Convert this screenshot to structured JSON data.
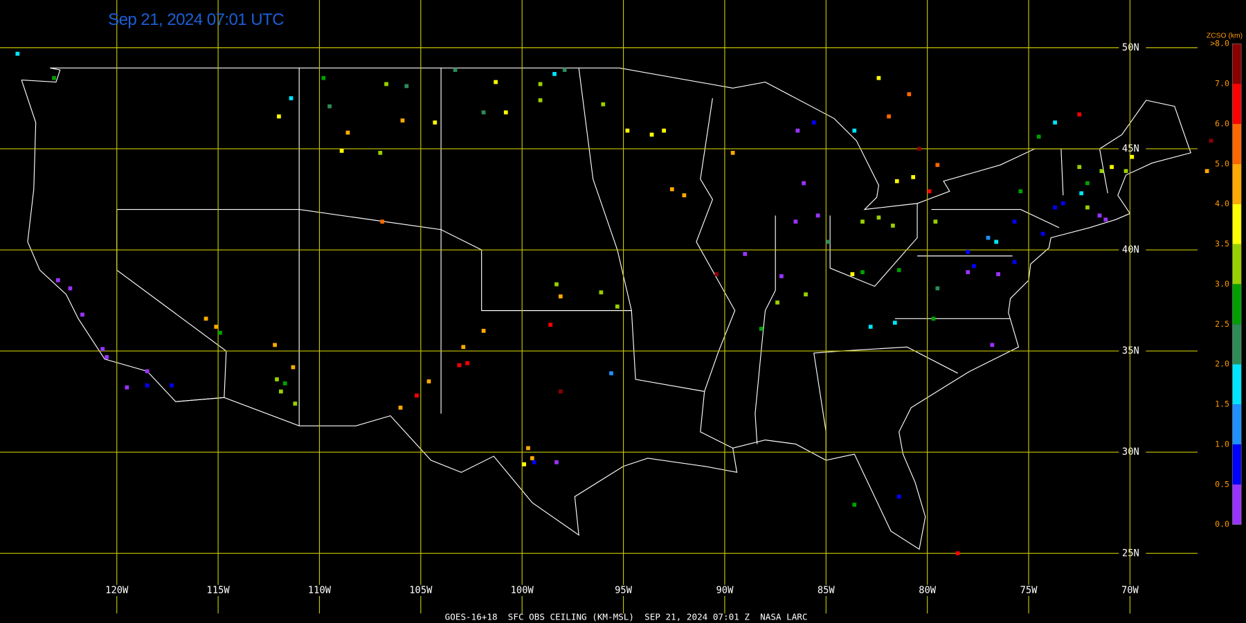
{
  "map": {
    "title": "Sep 21, 2024 07:01 UTC",
    "footer": "GOES-16+18  SFC OBS CEILING (KM-MSL)  SEP 21, 2024 07:01 Z  NASA LARC",
    "latitudes": [
      {
        "value": 50,
        "label": "50N"
      },
      {
        "value": 45,
        "label": "45N"
      },
      {
        "value": 40,
        "label": "40N"
      },
      {
        "value": 35,
        "label": "35N"
      },
      {
        "value": 30,
        "label": "30N"
      },
      {
        "value": 25,
        "label": "25N"
      }
    ],
    "longitudes": [
      {
        "value": -120,
        "label": "120W"
      },
      {
        "value": -115,
        "label": "115W"
      },
      {
        "value": -110,
        "label": "110W"
      },
      {
        "value": -105,
        "label": "105W"
      },
      {
        "value": -100,
        "label": "100W"
      },
      {
        "value": -95,
        "label": "95W"
      },
      {
        "value": -90,
        "label": "90W"
      },
      {
        "value": -85,
        "label": "85W"
      },
      {
        "value": -80,
        "label": "80W"
      },
      {
        "value": -75,
        "label": "75W"
      },
      {
        "value": -70,
        "label": "70W"
      }
    ],
    "colorbar": {
      "title": "ZCSO (km)",
      "bins": [
        0,
        0.5,
        1,
        1.5,
        2,
        2.5,
        3,
        3.5,
        4,
        5,
        6,
        7,
        8
      ],
      "colors": [
        "#9933ff",
        "#0000ff",
        "#1e90ff",
        "#00e5ff",
        "#2e8b57",
        "#00a000",
        "#99d000",
        "#ffff00",
        "#ffaa00",
        "#ff6600",
        "#ff0000",
        "#8b0000"
      ],
      "ticks": [
        {
          "value": 0,
          "label": "0.0"
        },
        {
          "value": 0.5,
          "label": "0.5"
        },
        {
          "value": 1,
          "label": "1.0"
        },
        {
          "value": 1.5,
          "label": "1.5"
        },
        {
          "value": 2,
          "label": "2.0"
        },
        {
          "value": 2.5,
          "label": "2.5"
        },
        {
          "value": 3,
          "label": "3.0"
        },
        {
          "value": 3.5,
          "label": "3.5"
        },
        {
          "value": 4,
          "label": "4.0"
        },
        {
          "value": 5,
          "label": "5.0"
        },
        {
          "value": 6,
          "label": "6.0"
        },
        {
          "value": 7,
          "label": "7.0"
        },
        {
          "value": 8,
          "label": ">8.0"
        }
      ]
    },
    "stations": [
      [
        -124.9,
        49.7,
        1.8
      ],
      [
        -123.1,
        48.5,
        2.7
      ],
      [
        -122.9,
        38.5,
        0.3
      ],
      [
        -122.3,
        38.1,
        0.3
      ],
      [
        -121.7,
        36.8,
        0.3
      ],
      [
        -120.7,
        35.1,
        0.3
      ],
      [
        -120.5,
        34.7,
        0.3
      ],
      [
        -119.5,
        33.2,
        0.3
      ],
      [
        -118.5,
        34.0,
        0.3
      ],
      [
        -118.5,
        33.3,
        0.7
      ],
      [
        -117.3,
        33.3,
        0.7
      ],
      [
        -115.6,
        36.6,
        4.5
      ],
      [
        -115.1,
        36.2,
        4.5
      ],
      [
        -114.9,
        35.9,
        2.7
      ],
      [
        -112.2,
        35.3,
        4.5
      ],
      [
        -111.3,
        34.2,
        4.5
      ],
      [
        -112.1,
        33.6,
        3.2
      ],
      [
        -111.7,
        33.4,
        2.7
      ],
      [
        -111.9,
        33.0,
        3.2
      ],
      [
        -111.2,
        32.4,
        3.2
      ],
      [
        -111.4,
        47.5,
        1.8
      ],
      [
        -112.0,
        46.6,
        3.8
      ],
      [
        -109.8,
        48.5,
        2.7
      ],
      [
        -109.5,
        47.1,
        2.2
      ],
      [
        -108.6,
        45.8,
        4.5
      ],
      [
        -108.9,
        44.9,
        3.8
      ],
      [
        -107.0,
        44.8,
        3.2
      ],
      [
        -106.7,
        48.2,
        3.2
      ],
      [
        -105.7,
        48.1,
        2.2
      ],
      [
        -105.9,
        46.4,
        4.5
      ],
      [
        -104.3,
        46.3,
        3.8
      ],
      [
        -106.9,
        41.4,
        5.5
      ],
      [
        -103.3,
        48.9,
        2.2
      ],
      [
        -101.3,
        48.3,
        3.8
      ],
      [
        -101.9,
        46.8,
        2.2
      ],
      [
        -100.8,
        46.8,
        3.8
      ],
      [
        -99.1,
        48.2,
        3.2
      ],
      [
        -98.4,
        48.7,
        1.8
      ],
      [
        -97.9,
        48.9,
        2.2
      ],
      [
        -99.1,
        47.4,
        3.2
      ],
      [
        -96.0,
        47.2,
        3.2
      ],
      [
        -94.8,
        45.9,
        3.8
      ],
      [
        -93.6,
        45.7,
        3.8
      ],
      [
        -93.0,
        45.9,
        3.8
      ],
      [
        -92.6,
        43.0,
        4.5
      ],
      [
        -92.0,
        42.7,
        4.5
      ],
      [
        -89.6,
        44.8,
        4.5
      ],
      [
        -98.3,
        38.3,
        3.2
      ],
      [
        -98.1,
        37.7,
        4.5
      ],
      [
        -98.6,
        36.3,
        6.5
      ],
      [
        -96.1,
        37.9,
        3.2
      ],
      [
        -95.3,
        37.2,
        3.2
      ],
      [
        -101.9,
        36.0,
        4.5
      ],
      [
        -102.9,
        35.2,
        4.5
      ],
      [
        -103.1,
        34.3,
        6.5
      ],
      [
        -102.7,
        34.4,
        6.5
      ],
      [
        -104.6,
        33.5,
        4.5
      ],
      [
        -105.2,
        32.8,
        6.5
      ],
      [
        -106.0,
        32.2,
        4.5
      ],
      [
        -98.1,
        33.0,
        7.5
      ],
      [
        -95.6,
        33.9,
        1.2
      ],
      [
        -99.7,
        30.2,
        4.5
      ],
      [
        -99.5,
        29.7,
        4.5
      ],
      [
        -99.9,
        29.4,
        3.8
      ],
      [
        -98.3,
        29.5,
        0.3
      ],
      [
        -99.4,
        29.5,
        0.7
      ],
      [
        -90.4,
        38.8,
        7.5
      ],
      [
        -89.0,
        39.8,
        0.3
      ],
      [
        -87.2,
        38.7,
        0.3
      ],
      [
        -86.5,
        41.4,
        0.3
      ],
      [
        -85.4,
        41.7,
        0.3
      ],
      [
        -86.1,
        43.3,
        0.3
      ],
      [
        -85.6,
        46.3,
        0.7
      ],
      [
        -86.4,
        45.9,
        0.3
      ],
      [
        -87.4,
        37.4,
        3.2
      ],
      [
        -86.0,
        37.8,
        3.2
      ],
      [
        -88.2,
        36.1,
        2.7
      ],
      [
        -83.7,
        38.8,
        3.8
      ],
      [
        -83.2,
        41.4,
        3.2
      ],
      [
        -82.4,
        41.6,
        3.2
      ],
      [
        -81.7,
        41.2,
        3.2
      ],
      [
        -83.2,
        38.9,
        2.7
      ],
      [
        -84.9,
        40.4,
        2.2
      ],
      [
        -83.6,
        45.9,
        1.8
      ],
      [
        -82.4,
        48.5,
        3.8
      ],
      [
        -80.9,
        47.7,
        5.5
      ],
      [
        -81.9,
        46.6,
        5.5
      ],
      [
        -80.4,
        45.0,
        7.5
      ],
      [
        -80.7,
        43.6,
        3.8
      ],
      [
        -81.5,
        43.4,
        3.8
      ],
      [
        -79.9,
        42.9,
        6.5
      ],
      [
        -79.5,
        44.2,
        5.5
      ],
      [
        -79.6,
        41.4,
        3.2
      ],
      [
        -81.4,
        39.0,
        2.7
      ],
      [
        -79.5,
        38.1,
        2.2
      ],
      [
        -81.6,
        36.4,
        1.8
      ],
      [
        -82.8,
        36.2,
        1.8
      ],
      [
        -79.7,
        36.6,
        2.7
      ],
      [
        -78.0,
        38.9,
        0.3
      ],
      [
        -77.7,
        39.2,
        0.7
      ],
      [
        -76.6,
        40.4,
        1.8
      ],
      [
        -77.0,
        40.6,
        1.2
      ],
      [
        -78.0,
        39.9,
        0.7
      ],
      [
        -76.5,
        38.8,
        0.3
      ],
      [
        -75.7,
        39.4,
        0.7
      ],
      [
        -75.4,
        42.9,
        2.7
      ],
      [
        -76.8,
        35.3,
        0.3
      ],
      [
        -75.7,
        41.4,
        0.7
      ],
      [
        -74.3,
        40.8,
        0.7
      ],
      [
        -73.7,
        42.1,
        0.7
      ],
      [
        -73.3,
        42.3,
        0.7
      ],
      [
        -72.4,
        42.8,
        1.8
      ],
      [
        -72.1,
        42.1,
        3.2
      ],
      [
        -71.5,
        41.7,
        0.3
      ],
      [
        -71.2,
        41.5,
        0.3
      ],
      [
        -72.1,
        43.3,
        2.7
      ],
      [
        -72.5,
        44.1,
        3.2
      ],
      [
        -71.4,
        43.9,
        3.2
      ],
      [
        -70.9,
        44.1,
        3.8
      ],
      [
        -70.2,
        43.9,
        3.2
      ],
      [
        -69.9,
        44.6,
        3.8
      ],
      [
        -74.5,
        45.6,
        2.7
      ],
      [
        -73.7,
        46.3,
        1.8
      ],
      [
        -72.5,
        46.7,
        6.5
      ],
      [
        -66.0,
        45.4,
        7.5
      ],
      [
        -66.2,
        43.9,
        4.5
      ],
      [
        -83.6,
        27.4,
        2.7
      ],
      [
        -81.4,
        27.8,
        0.7
      ],
      [
        -78.5,
        25.0,
        6.5
      ]
    ]
  }
}
